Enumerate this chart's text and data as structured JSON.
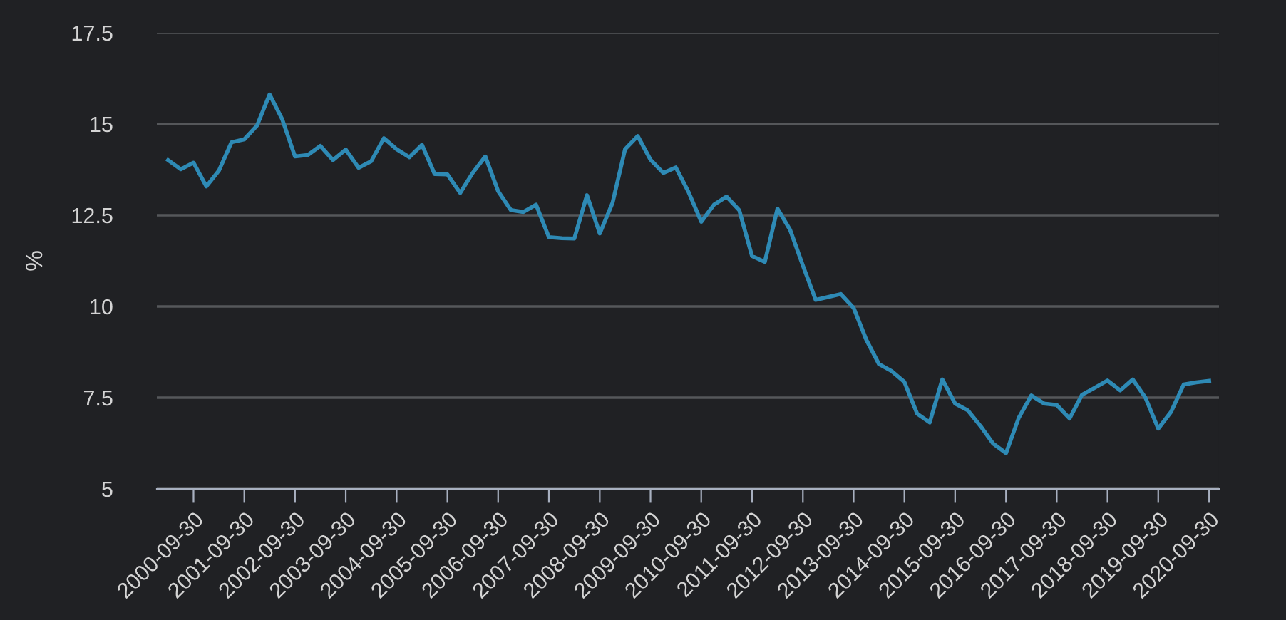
{
  "chart_data": {
    "type": "line",
    "ylabel": "%",
    "x": [
      "2000-03-31",
      "2000-06-30",
      "2000-09-30",
      "2000-12-31",
      "2001-03-31",
      "2001-06-30",
      "2001-09-30",
      "2001-12-31",
      "2002-03-31",
      "2002-06-30",
      "2002-09-30",
      "2002-12-31",
      "2003-03-31",
      "2003-06-30",
      "2003-09-30",
      "2003-12-31",
      "2004-03-31",
      "2004-06-30",
      "2004-09-30",
      "2004-12-31",
      "2005-03-31",
      "2005-06-30",
      "2005-09-30",
      "2005-12-31",
      "2006-03-31",
      "2006-06-30",
      "2006-09-30",
      "2006-12-31",
      "2007-03-31",
      "2007-06-30",
      "2007-09-30",
      "2007-12-31",
      "2008-03-31",
      "2008-06-30",
      "2008-09-30",
      "2008-12-31",
      "2009-03-31",
      "2009-06-30",
      "2009-09-30",
      "2009-12-31",
      "2010-03-31",
      "2010-06-30",
      "2010-09-30",
      "2010-12-31",
      "2011-03-31",
      "2011-06-30",
      "2011-09-30",
      "2011-12-31",
      "2012-03-31",
      "2012-06-30",
      "2012-09-30",
      "2012-12-31",
      "2013-03-31",
      "2013-06-30",
      "2013-09-30",
      "2013-12-31",
      "2014-03-31",
      "2014-06-30",
      "2014-09-30",
      "2014-12-31",
      "2015-03-31",
      "2015-06-30",
      "2015-09-30",
      "2015-12-31",
      "2016-03-31",
      "2016-06-30",
      "2016-09-30",
      "2016-12-31",
      "2017-03-31",
      "2017-06-30",
      "2017-09-30",
      "2017-12-31",
      "2018-03-31",
      "2018-06-30",
      "2018-09-30",
      "2018-12-31",
      "2019-03-31",
      "2019-06-30",
      "2019-09-30",
      "2019-12-31",
      "2020-03-31",
      "2020-06-30",
      "2020-09-30"
    ],
    "series": [
      {
        "color": "#2e8ab5",
        "values": [
          14.01,
          13.76,
          13.94,
          13.29,
          13.72,
          14.5,
          14.58,
          14.96,
          15.81,
          15.13,
          14.11,
          14.15,
          14.4,
          14.01,
          14.3,
          13.8,
          13.98,
          14.61,
          14.31,
          14.09,
          14.43,
          13.63,
          13.62,
          13.11,
          13.66,
          14.11,
          13.16,
          12.64,
          12.59,
          12.79,
          11.9,
          11.87,
          11.86,
          13.05,
          12.0,
          12.84,
          14.31,
          14.67,
          14.02,
          13.66,
          13.81,
          13.14,
          12.32,
          12.79,
          13.01,
          12.64,
          11.38,
          11.22,
          12.68,
          12.1,
          11.12,
          10.18,
          10.26,
          10.34,
          9.96,
          9.08,
          8.42,
          8.23,
          7.93,
          7.06,
          6.82,
          8.0,
          7.34,
          7.15,
          6.72,
          6.24,
          5.98,
          6.95,
          7.56,
          7.34,
          7.3,
          6.93,
          7.58,
          7.77,
          7.97,
          7.7,
          8.0,
          7.5,
          6.65,
          7.11,
          7.86,
          7.92,
          7.96
        ]
      }
    ],
    "xlim": [
      "2000-01-10",
      "2020-12-10"
    ],
    "xticks": [
      "2000-09-30",
      "2001-09-30",
      "2002-09-30",
      "2003-09-30",
      "2004-09-30",
      "2005-09-30",
      "2006-09-30",
      "2007-09-30",
      "2008-09-30",
      "2009-09-30",
      "2010-09-30",
      "2011-09-30",
      "2012-09-30",
      "2013-09-30",
      "2014-09-30",
      "2015-09-30",
      "2016-09-30",
      "2017-09-30",
      "2018-09-30",
      "2019-09-30",
      "2020-09-30"
    ],
    "ylim": [
      5,
      17.5
    ],
    "yticks": [
      5,
      7.5,
      10,
      12.5,
      15,
      17.5
    ],
    "grid": "y",
    "marker": "none",
    "line_style": "solid"
  }
}
